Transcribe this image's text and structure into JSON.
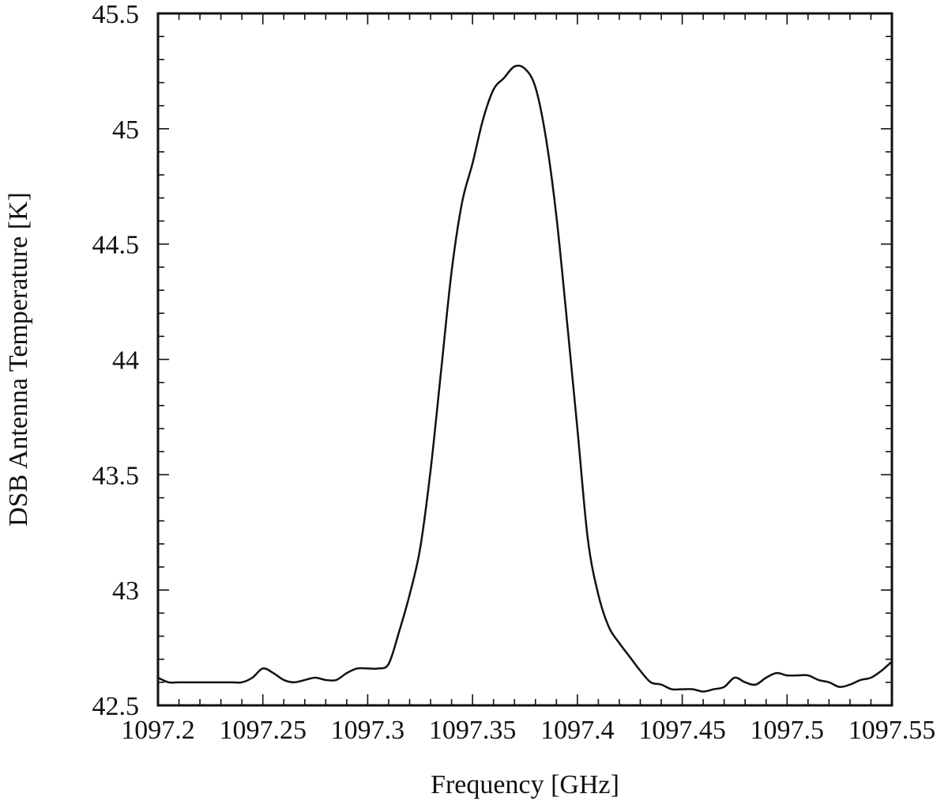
{
  "chart_data": {
    "type": "line",
    "title": "",
    "xlabel": "Frequency [GHz]",
    "ylabel": "DSB Antenna Temperature [K]",
    "xlim": [
      1097.2,
      1097.55
    ],
    "ylim": [
      42.5,
      45.5
    ],
    "x_ticks": [
      1097.2,
      1097.25,
      1097.3,
      1097.35,
      1097.4,
      1097.45,
      1097.5,
      1097.55
    ],
    "x_tick_labels": [
      "1097.2",
      "1097.25",
      "1097.3",
      "1097.35",
      "1097.4",
      "1097.45",
      "1097.5",
      "1097.55"
    ],
    "y_ticks": [
      42.5,
      43,
      43.5,
      44,
      44.5,
      45,
      45.5
    ],
    "y_tick_labels": [
      "42.5",
      "43",
      "43.5",
      "44",
      "44.5",
      "45",
      "45.5"
    ],
    "grid": false,
    "line_color": "#111111",
    "series": [
      {
        "x": [
          1097.2,
          1097.205,
          1097.21,
          1097.215,
          1097.22,
          1097.225,
          1097.23,
          1097.235,
          1097.24,
          1097.245,
          1097.25,
          1097.255,
          1097.26,
          1097.265,
          1097.27,
          1097.275,
          1097.28,
          1097.285,
          1097.29,
          1097.295,
          1097.3,
          1097.305,
          1097.31,
          1097.315,
          1097.32,
          1097.325,
          1097.33,
          1097.335,
          1097.34,
          1097.345,
          1097.35,
          1097.355,
          1097.36,
          1097.365,
          1097.37,
          1097.375,
          1097.38,
          1097.385,
          1097.39,
          1097.395,
          1097.4,
          1097.405,
          1097.41,
          1097.415,
          1097.42,
          1097.425,
          1097.43,
          1097.435,
          1097.44,
          1097.445,
          1097.45,
          1097.455,
          1097.46,
          1097.465,
          1097.47,
          1097.475,
          1097.48,
          1097.485,
          1097.49,
          1097.495,
          1097.5,
          1097.505,
          1097.51,
          1097.515,
          1097.52,
          1097.525,
          1097.53,
          1097.535,
          1097.54,
          1097.545,
          1097.55
        ],
        "y": [
          42.62,
          42.6,
          42.6,
          42.6,
          42.6,
          42.6,
          42.6,
          42.6,
          42.6,
          42.62,
          42.66,
          42.64,
          42.61,
          42.6,
          42.61,
          42.62,
          42.61,
          42.61,
          42.64,
          42.66,
          42.66,
          42.66,
          42.68,
          42.82,
          42.98,
          43.18,
          43.52,
          43.95,
          44.38,
          44.68,
          44.85,
          45.04,
          45.17,
          45.22,
          45.27,
          45.26,
          45.18,
          44.96,
          44.62,
          44.17,
          43.7,
          43.22,
          42.98,
          42.84,
          42.77,
          42.71,
          42.65,
          42.6,
          42.59,
          42.57,
          42.57,
          42.57,
          42.56,
          42.57,
          42.58,
          42.62,
          42.6,
          42.59,
          42.62,
          42.64,
          42.63,
          42.63,
          42.63,
          42.61,
          42.6,
          42.58,
          42.59,
          42.61,
          42.62,
          42.65,
          42.69
        ]
      }
    ]
  }
}
